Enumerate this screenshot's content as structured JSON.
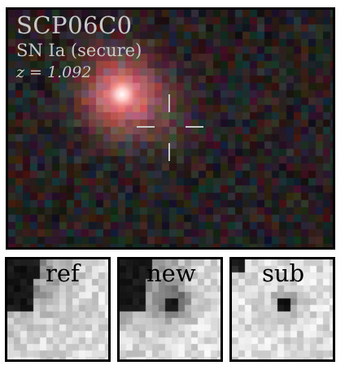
{
  "main": {
    "title": "SCP06C0",
    "subtitle": "SN Ia (secure)",
    "redshift": "z = 1.092"
  },
  "thumbnails": [
    {
      "label": "ref"
    },
    {
      "label": "new"
    },
    {
      "label": "sub"
    }
  ],
  "colors": {
    "text": "#c8c8c8",
    "crosshair": "#c9c9c9",
    "galaxy_core": "#ffffff",
    "galaxy_halo": "#e06a6a",
    "border": "#000000"
  }
}
